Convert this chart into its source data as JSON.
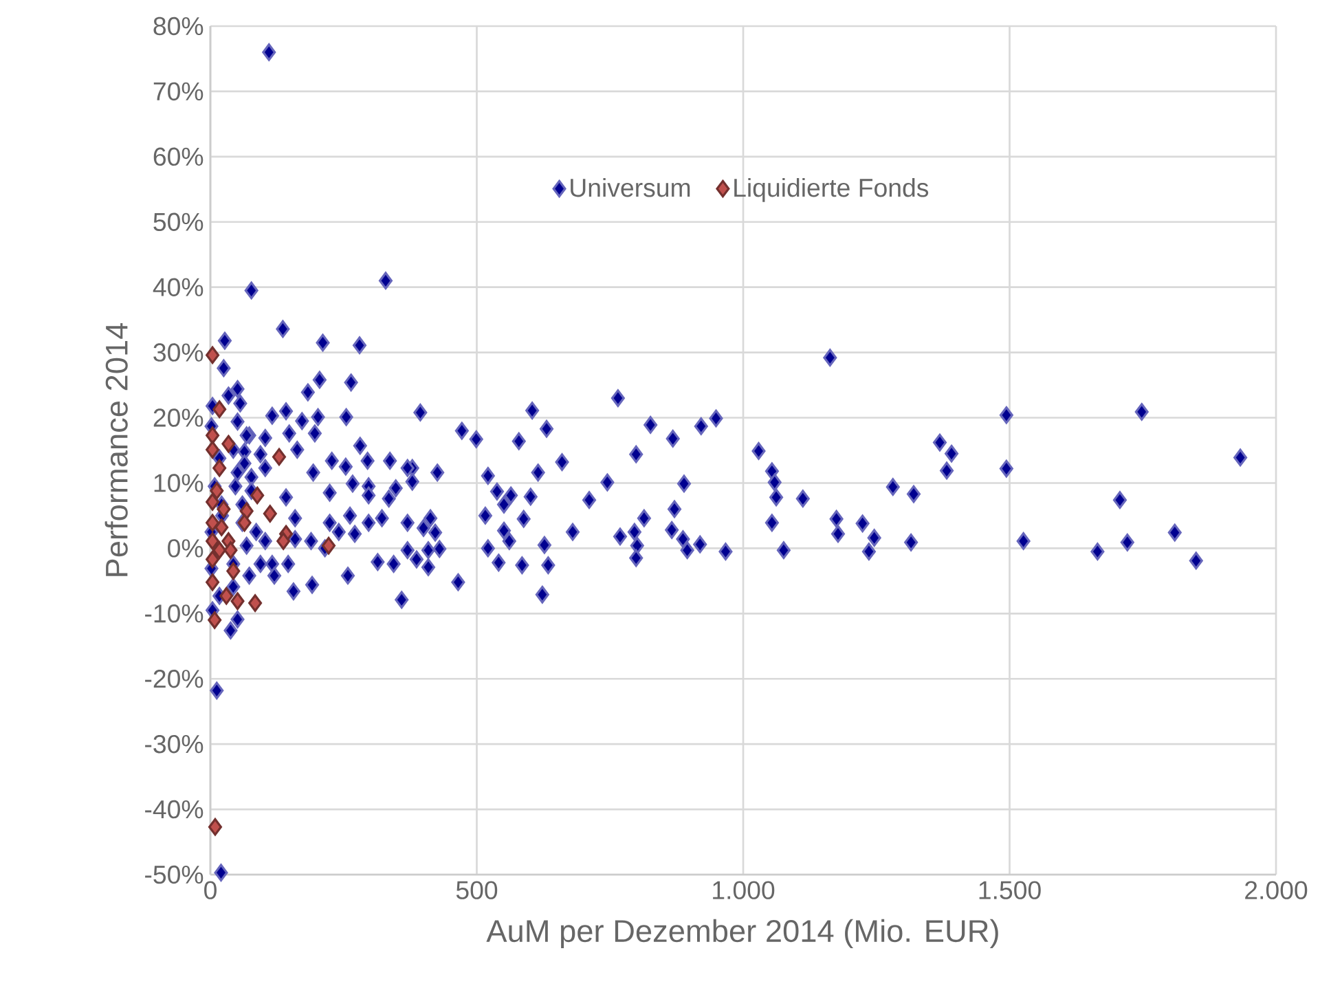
{
  "chart_data": {
    "type": "scatter",
    "xlabel": "AuM per Dezember 2014 (Mio. EUR)",
    "ylabel": "Performance 2014",
    "xlim": [
      0,
      2000
    ],
    "ylim": [
      -50,
      80
    ],
    "xticks": [
      0,
      500,
      {
        "value": 1000,
        "label": "1.000"
      },
      {
        "value": 1500,
        "label": "1.500"
      },
      {
        "value": 2000,
        "label": "2.000"
      }
    ],
    "yticks": [
      {
        "value": -50,
        "label": "-50%"
      },
      {
        "value": -40,
        "label": "-40%"
      },
      {
        "value": -30,
        "label": "-30%"
      },
      {
        "value": -20,
        "label": "-20%"
      },
      {
        "value": -10,
        "label": "-10%"
      },
      {
        "value": 0,
        "label": "0%"
      },
      {
        "value": 10,
        "label": "10%"
      },
      {
        "value": 20,
        "label": "20%"
      },
      {
        "value": 30,
        "label": "30%"
      },
      {
        "value": 40,
        "label": "40%"
      },
      {
        "value": 50,
        "label": "50%"
      },
      {
        "value": 60,
        "label": "60%"
      },
      {
        "value": 70,
        "label": "70%"
      },
      {
        "value": 80,
        "label": "80%"
      }
    ],
    "grid": true,
    "legend": "top",
    "marker": "diamond",
    "series": [
      {
        "name": "Universum",
        "color": "#000090",
        "x": [
          110,
          12,
          20,
          77,
          329,
          25,
          136,
          211,
          280,
          27,
          1163,
          1494,
          1748,
          1369,
          1391,
          1382,
          1494,
          1933,
          1281,
          1320,
          1707,
          1175,
          1224,
          1178,
          1246,
          1236,
          1315,
          1526,
          1665,
          1721,
          1810,
          1850,
          394,
          765,
          604,
          472,
          499,
          579,
          631,
          826,
          868,
          921,
          949,
          1029,
          799,
          660,
          426,
          521,
          615,
          745,
          889,
          1054,
          1059,
          1062,
          1112,
          538,
          564,
          551,
          601,
          711,
          871,
          516,
          588,
          814,
          1054,
          551,
          561,
          680,
          769,
          796,
          866,
          887,
          919,
          521,
          627,
          801,
          895,
          967,
          1076,
          541,
          585,
          634,
          799,
          465,
          623,
          413,
          400,
          422,
          430,
          409,
          387,
          379,
          379,
          205,
          264,
          183,
          51,
          34,
          56,
          116,
          142,
          202,
          255,
          172,
          148,
          196,
          163,
          281,
          295,
          337,
          370,
          73,
          103,
          64,
          94,
          228,
          254,
          193,
          267,
          297,
          224,
          297,
          335,
          348,
          51,
          77,
          47,
          77,
          103,
          142,
          159,
          224,
          262,
          297,
          322,
          271,
          370,
          370,
          409,
          159,
          189,
          215,
          241,
          146,
          116,
          120,
          73,
          258,
          314,
          344,
          156,
          191,
          359,
          51,
          38,
          43,
          51,
          68,
          43,
          64,
          17,
          8,
          21,
          60,
          60,
          86,
          103,
          68,
          43,
          94,
          2,
          2,
          17,
          4,
          4,
          2,
          22
        ],
        "values": [
          76.0,
          -21.8,
          -49.7,
          39.5,
          41.0,
          27.6,
          33.6,
          31.5,
          31.1,
          31.8,
          29.2,
          20.4,
          20.9,
          16.2,
          14.5,
          11.9,
          12.2,
          13.9,
          9.4,
          8.3,
          7.4,
          4.5,
          3.8,
          2.2,
          1.6,
          -0.5,
          0.9,
          1.1,
          -0.5,
          0.9,
          2.4,
          -1.9,
          20.8,
          23.0,
          21.1,
          18.0,
          16.7,
          16.4,
          18.3,
          18.9,
          16.8,
          18.7,
          19.9,
          14.9,
          14.4,
          13.2,
          11.6,
          11.1,
          11.6,
          10.1,
          9.9,
          11.8,
          10.1,
          7.8,
          7.6,
          8.7,
          8.1,
          6.7,
          7.9,
          7.4,
          6.0,
          5.0,
          4.5,
          4.6,
          3.9,
          2.7,
          1.1,
          2.5,
          1.8,
          2.5,
          2.8,
          1.4,
          0.6,
          0.0,
          0.5,
          0.4,
          -0.3,
          -0.5,
          -0.3,
          -2.2,
          -2.6,
          -2.6,
          -1.5,
          -5.2,
          -7.1,
          4.6,
          3.1,
          2.4,
          -0.1,
          -2.9,
          -1.7,
          12.3,
          10.2,
          25.8,
          25.4,
          23.9,
          24.4,
          23.4,
          22.2,
          20.3,
          21.0,
          20.1,
          20.1,
          19.5,
          17.6,
          17.6,
          15.1,
          15.7,
          13.4,
          13.4,
          12.3,
          17.3,
          16.9,
          14.8,
          14.4,
          13.4,
          12.5,
          11.6,
          9.9,
          9.5,
          8.5,
          8.1,
          7.6,
          9.2,
          11.6,
          10.9,
          9.5,
          8.8,
          12.3,
          7.8,
          4.6,
          3.9,
          5.0,
          3.9,
          4.6,
          2.2,
          3.9,
          -0.3,
          -0.3,
          1.4,
          1.1,
          0.0,
          2.5,
          -2.4,
          -2.4,
          -4.2,
          -4.2,
          -4.2,
          -2.1,
          -2.4,
          -6.6,
          -5.6,
          -7.9,
          -10.9,
          -12.6,
          -5.9,
          19.4,
          17.3,
          15.1,
          13.0,
          13.8,
          9.5,
          6.7,
          6.7,
          3.9,
          2.5,
          1.1,
          0.4,
          -2.4,
          -2.4,
          2.5,
          -3.1,
          -7.3,
          -9.5,
          21.8,
          18.7,
          5.0
        ]
      },
      {
        "name": "Liquidierte Fonds",
        "color": "#c0504d",
        "x": [
          4,
          17,
          4,
          4,
          34,
          17,
          129,
          12,
          4,
          25,
          88,
          68,
          112,
          64,
          4,
          21,
          34,
          4,
          142,
          137,
          222,
          4,
          43,
          4,
          30,
          51,
          84,
          8,
          17,
          38,
          9
        ],
        "values": [
          29.6,
          21.3,
          17.3,
          15.1,
          16.0,
          12.3,
          14.0,
          8.8,
          7.1,
          6.0,
          8.1,
          5.7,
          5.3,
          3.9,
          3.9,
          3.2,
          1.1,
          1.1,
          2.2,
          1.1,
          0.4,
          -1.7,
          -3.5,
          -5.2,
          -7.3,
          -8.1,
          -8.4,
          -11.0,
          -0.3,
          -0.3,
          -42.7
        ]
      }
    ]
  }
}
